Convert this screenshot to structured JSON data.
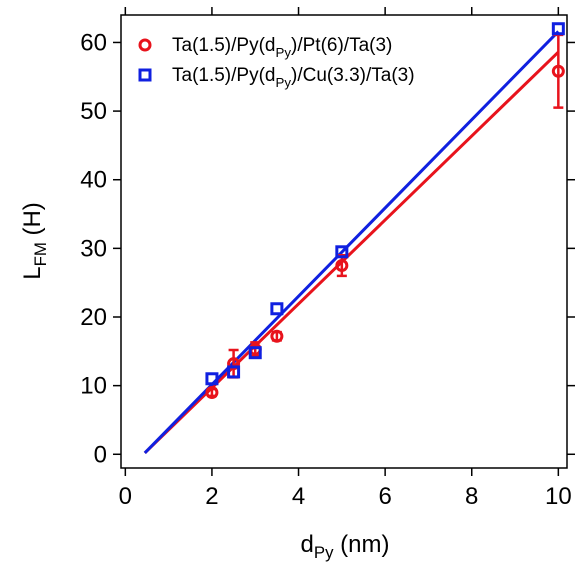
{
  "chart_data": {
    "type": "scatter",
    "x_label": [
      "d",
      "Py",
      " (nm)"
    ],
    "y_label": [
      "L",
      "FM",
      " (H)"
    ],
    "xlim": [
      -0.1,
      10.2
    ],
    "ylim": [
      -2,
      64
    ],
    "xticks": [
      0,
      2,
      4,
      6,
      8,
      10
    ],
    "yticks": [
      0,
      10,
      20,
      30,
      40,
      50,
      60
    ],
    "legend": "upper left",
    "series": [
      {
        "name": [
          "Ta(1.5)/Py(d",
          "Py",
          ")/Pt(6)/Ta(3)"
        ],
        "color": "#e8131c",
        "marker": "circle",
        "x": [
          2,
          2.5,
          3,
          3.5,
          5,
          10
        ],
        "values": [
          9,
          13.2,
          15.3,
          17.2,
          27.5,
          55.8
        ],
        "errors": [
          0.5,
          2,
          1,
          0.6,
          1.5,
          5.3
        ],
        "fit": {
          "x": [
            0.45,
            10
          ],
          "y": [
            0.2,
            58.6
          ]
        }
      },
      {
        "name": [
          "Ta(1.5)/Py(d",
          "Py",
          ")/Cu(3.3)/Ta(3)"
        ],
        "color": "#1020e0",
        "marker": "square",
        "x": [
          2,
          2.5,
          3,
          3.5,
          5,
          10
        ],
        "values": [
          11,
          12,
          14.8,
          21.2,
          29.5,
          62
        ],
        "errors": [
          null,
          null,
          null,
          null,
          null,
          null
        ],
        "fit": {
          "x": [
            0.45,
            10
          ],
          "y": [
            0.2,
            61.6
          ]
        }
      }
    ]
  }
}
